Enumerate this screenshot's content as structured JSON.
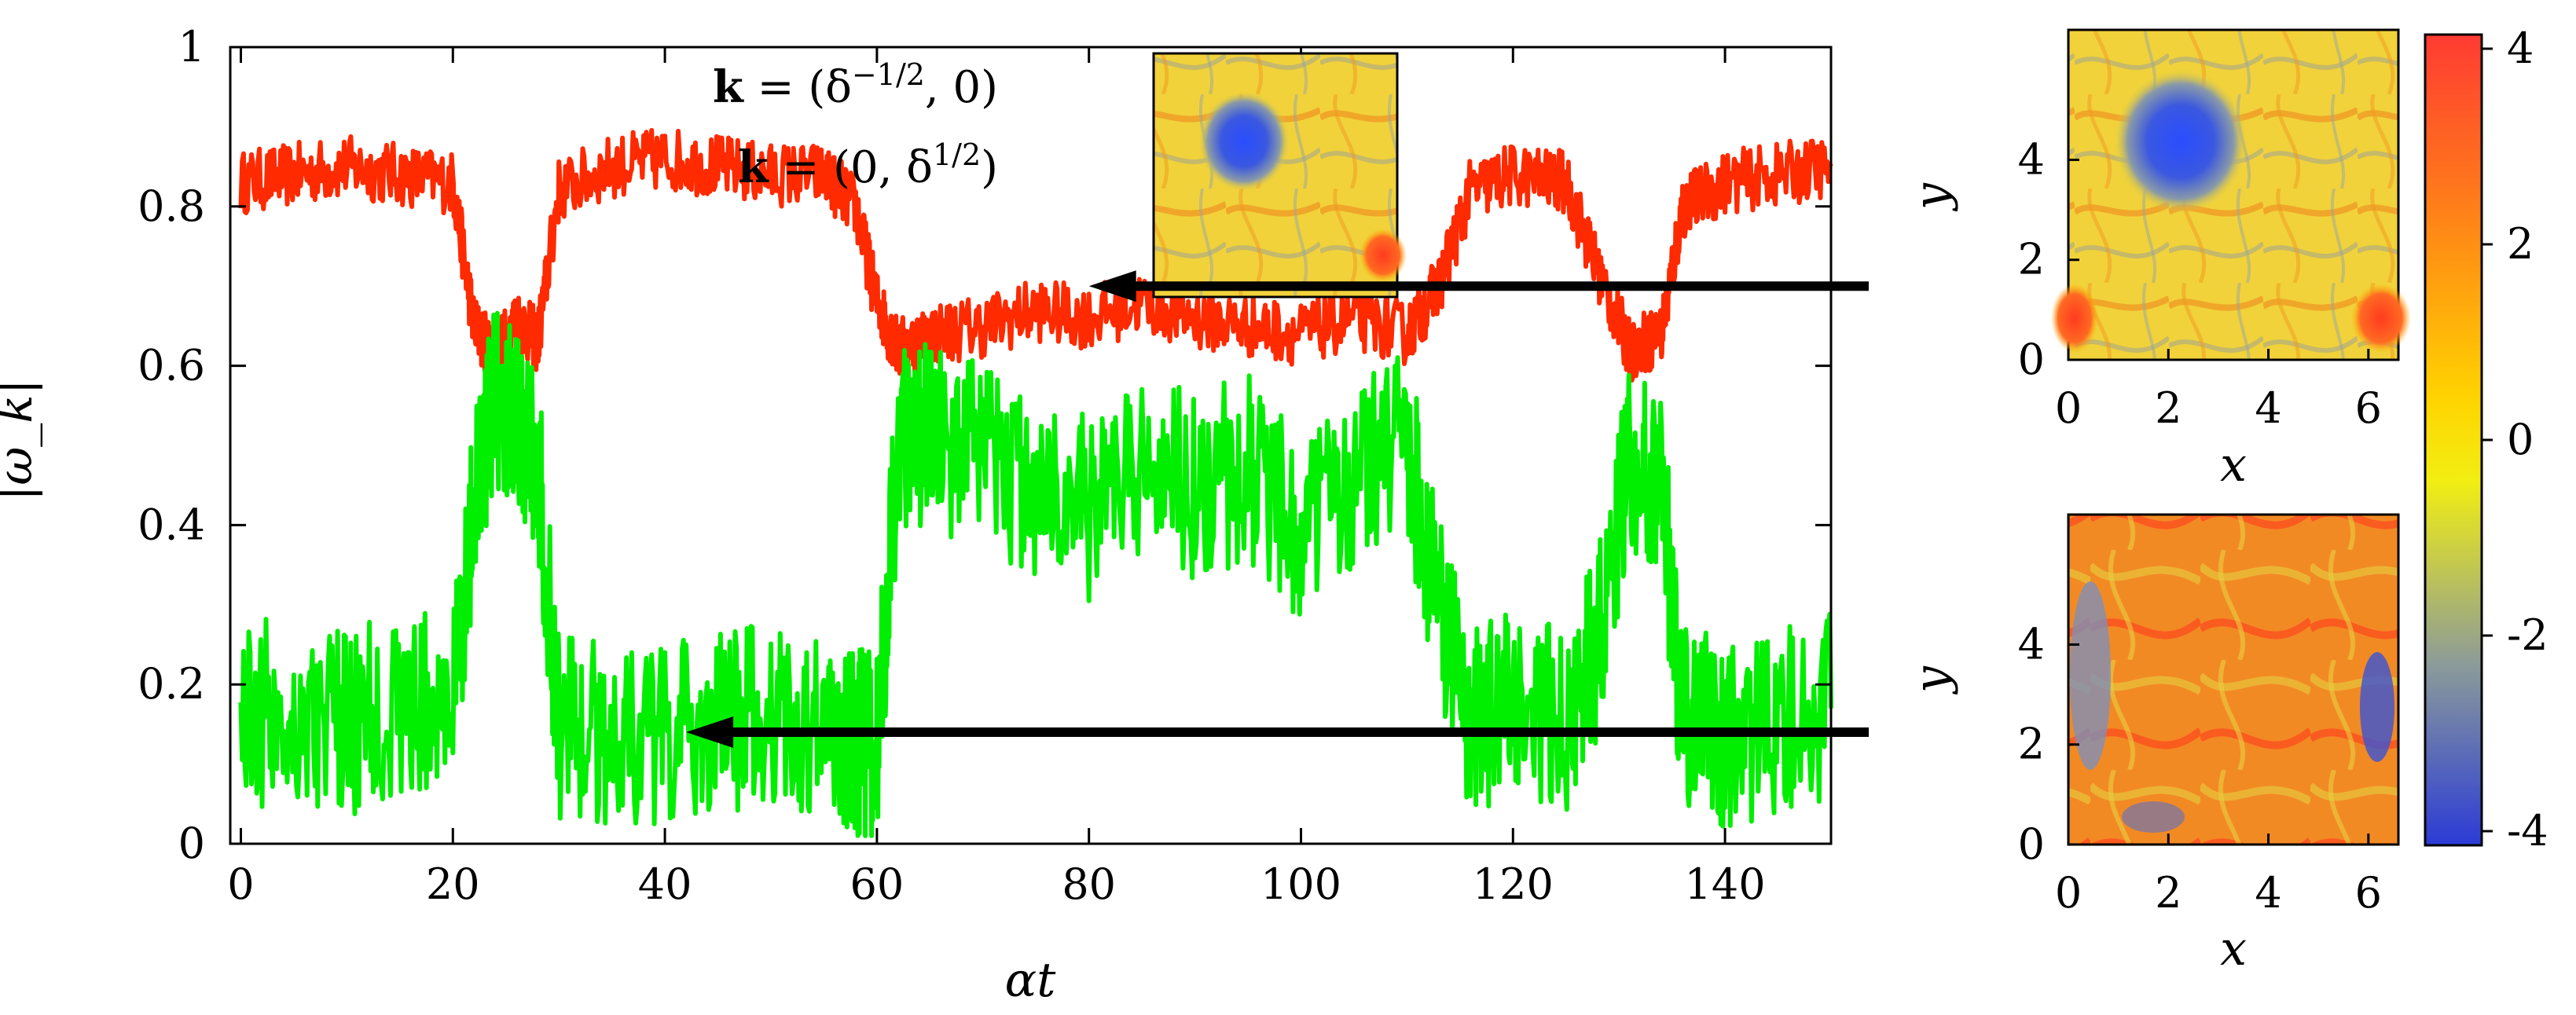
{
  "chart_data": [
    {
      "type": "line",
      "xlabel": "αt",
      "ylabel": "|ω_k|",
      "xlim": [
        -1,
        150
      ],
      "ylim": [
        0,
        1
      ],
      "xticks": [
        "0",
        "20",
        "40",
        "60",
        "80",
        "100",
        "120",
        "140"
      ],
      "yticks": [
        "0",
        "0.2",
        "0.4",
        "0.6",
        "0.8",
        "1"
      ],
      "legend": {
        "placement": "top-center",
        "entries": [
          "k = (δ^{-1/2}, 0)",
          "k = (0, δ^{1/2})"
        ]
      },
      "series": [
        {
          "color": "#ff2a00",
          "x": [
            0,
            5,
            10,
            15,
            20,
            22,
            24,
            26,
            28,
            30,
            35,
            40,
            45,
            50,
            55,
            58,
            60,
            62,
            65,
            70,
            75,
            80,
            85,
            90,
            95,
            100,
            105,
            110,
            113,
            116,
            120,
            125,
            128,
            131,
            134,
            136,
            140,
            145,
            150
          ],
          "values": [
            0.83,
            0.84,
            0.85,
            0.84,
            0.83,
            0.65,
            0.61,
            0.66,
            0.63,
            0.82,
            0.85,
            0.86,
            0.85,
            0.84,
            0.84,
            0.8,
            0.68,
            0.62,
            0.64,
            0.65,
            0.67,
            0.66,
            0.68,
            0.66,
            0.65,
            0.64,
            0.66,
            0.64,
            0.7,
            0.82,
            0.84,
            0.83,
            0.72,
            0.62,
            0.64,
            0.8,
            0.83,
            0.84,
            0.85
          ]
        },
        {
          "color": "#00ee00",
          "x": [
            0,
            5,
            10,
            15,
            20,
            22,
            24,
            26,
            28,
            30,
            35,
            40,
            45,
            50,
            55,
            58,
            60,
            62,
            65,
            70,
            75,
            80,
            85,
            90,
            95,
            100,
            105,
            110,
            113,
            116,
            120,
            125,
            128,
            131,
            134,
            136,
            140,
            145,
            150
          ],
          "values": [
            0.17,
            0.16,
            0.15,
            0.17,
            0.18,
            0.42,
            0.56,
            0.55,
            0.48,
            0.15,
            0.14,
            0.13,
            0.15,
            0.16,
            0.14,
            0.13,
            0.12,
            0.5,
            0.52,
            0.48,
            0.45,
            0.42,
            0.48,
            0.45,
            0.47,
            0.4,
            0.46,
            0.5,
            0.3,
            0.15,
            0.18,
            0.16,
            0.25,
            0.48,
            0.45,
            0.16,
            0.14,
            0.15,
            0.17
          ]
        }
      ],
      "arrows": [
        {
          "y": 0.7,
          "x_head": 80
        },
        {
          "y": 0.14,
          "x_head": 42
        }
      ]
    },
    {
      "type": "heatmap",
      "xlabel": "x",
      "ylabel": "y",
      "xticks": [
        "0",
        "2",
        "4",
        "6"
      ],
      "yticks": [
        "0",
        "2",
        "4"
      ]
    },
    {
      "type": "heatmap",
      "xlabel": "x",
      "ylabel": "y",
      "xticks": [
        "0",
        "2",
        "4",
        "6"
      ],
      "yticks": [
        "0",
        "2",
        "4"
      ]
    },
    {
      "type": "colorbar",
      "ticks": [
        "4",
        "2",
        "0",
        "-2",
        "-4"
      ],
      "colors": [
        "#ff3b33",
        "#ff7a1a",
        "#ffd400",
        "#f2ee12",
        "#8a9a9a",
        "#2b3bd6"
      ]
    }
  ]
}
